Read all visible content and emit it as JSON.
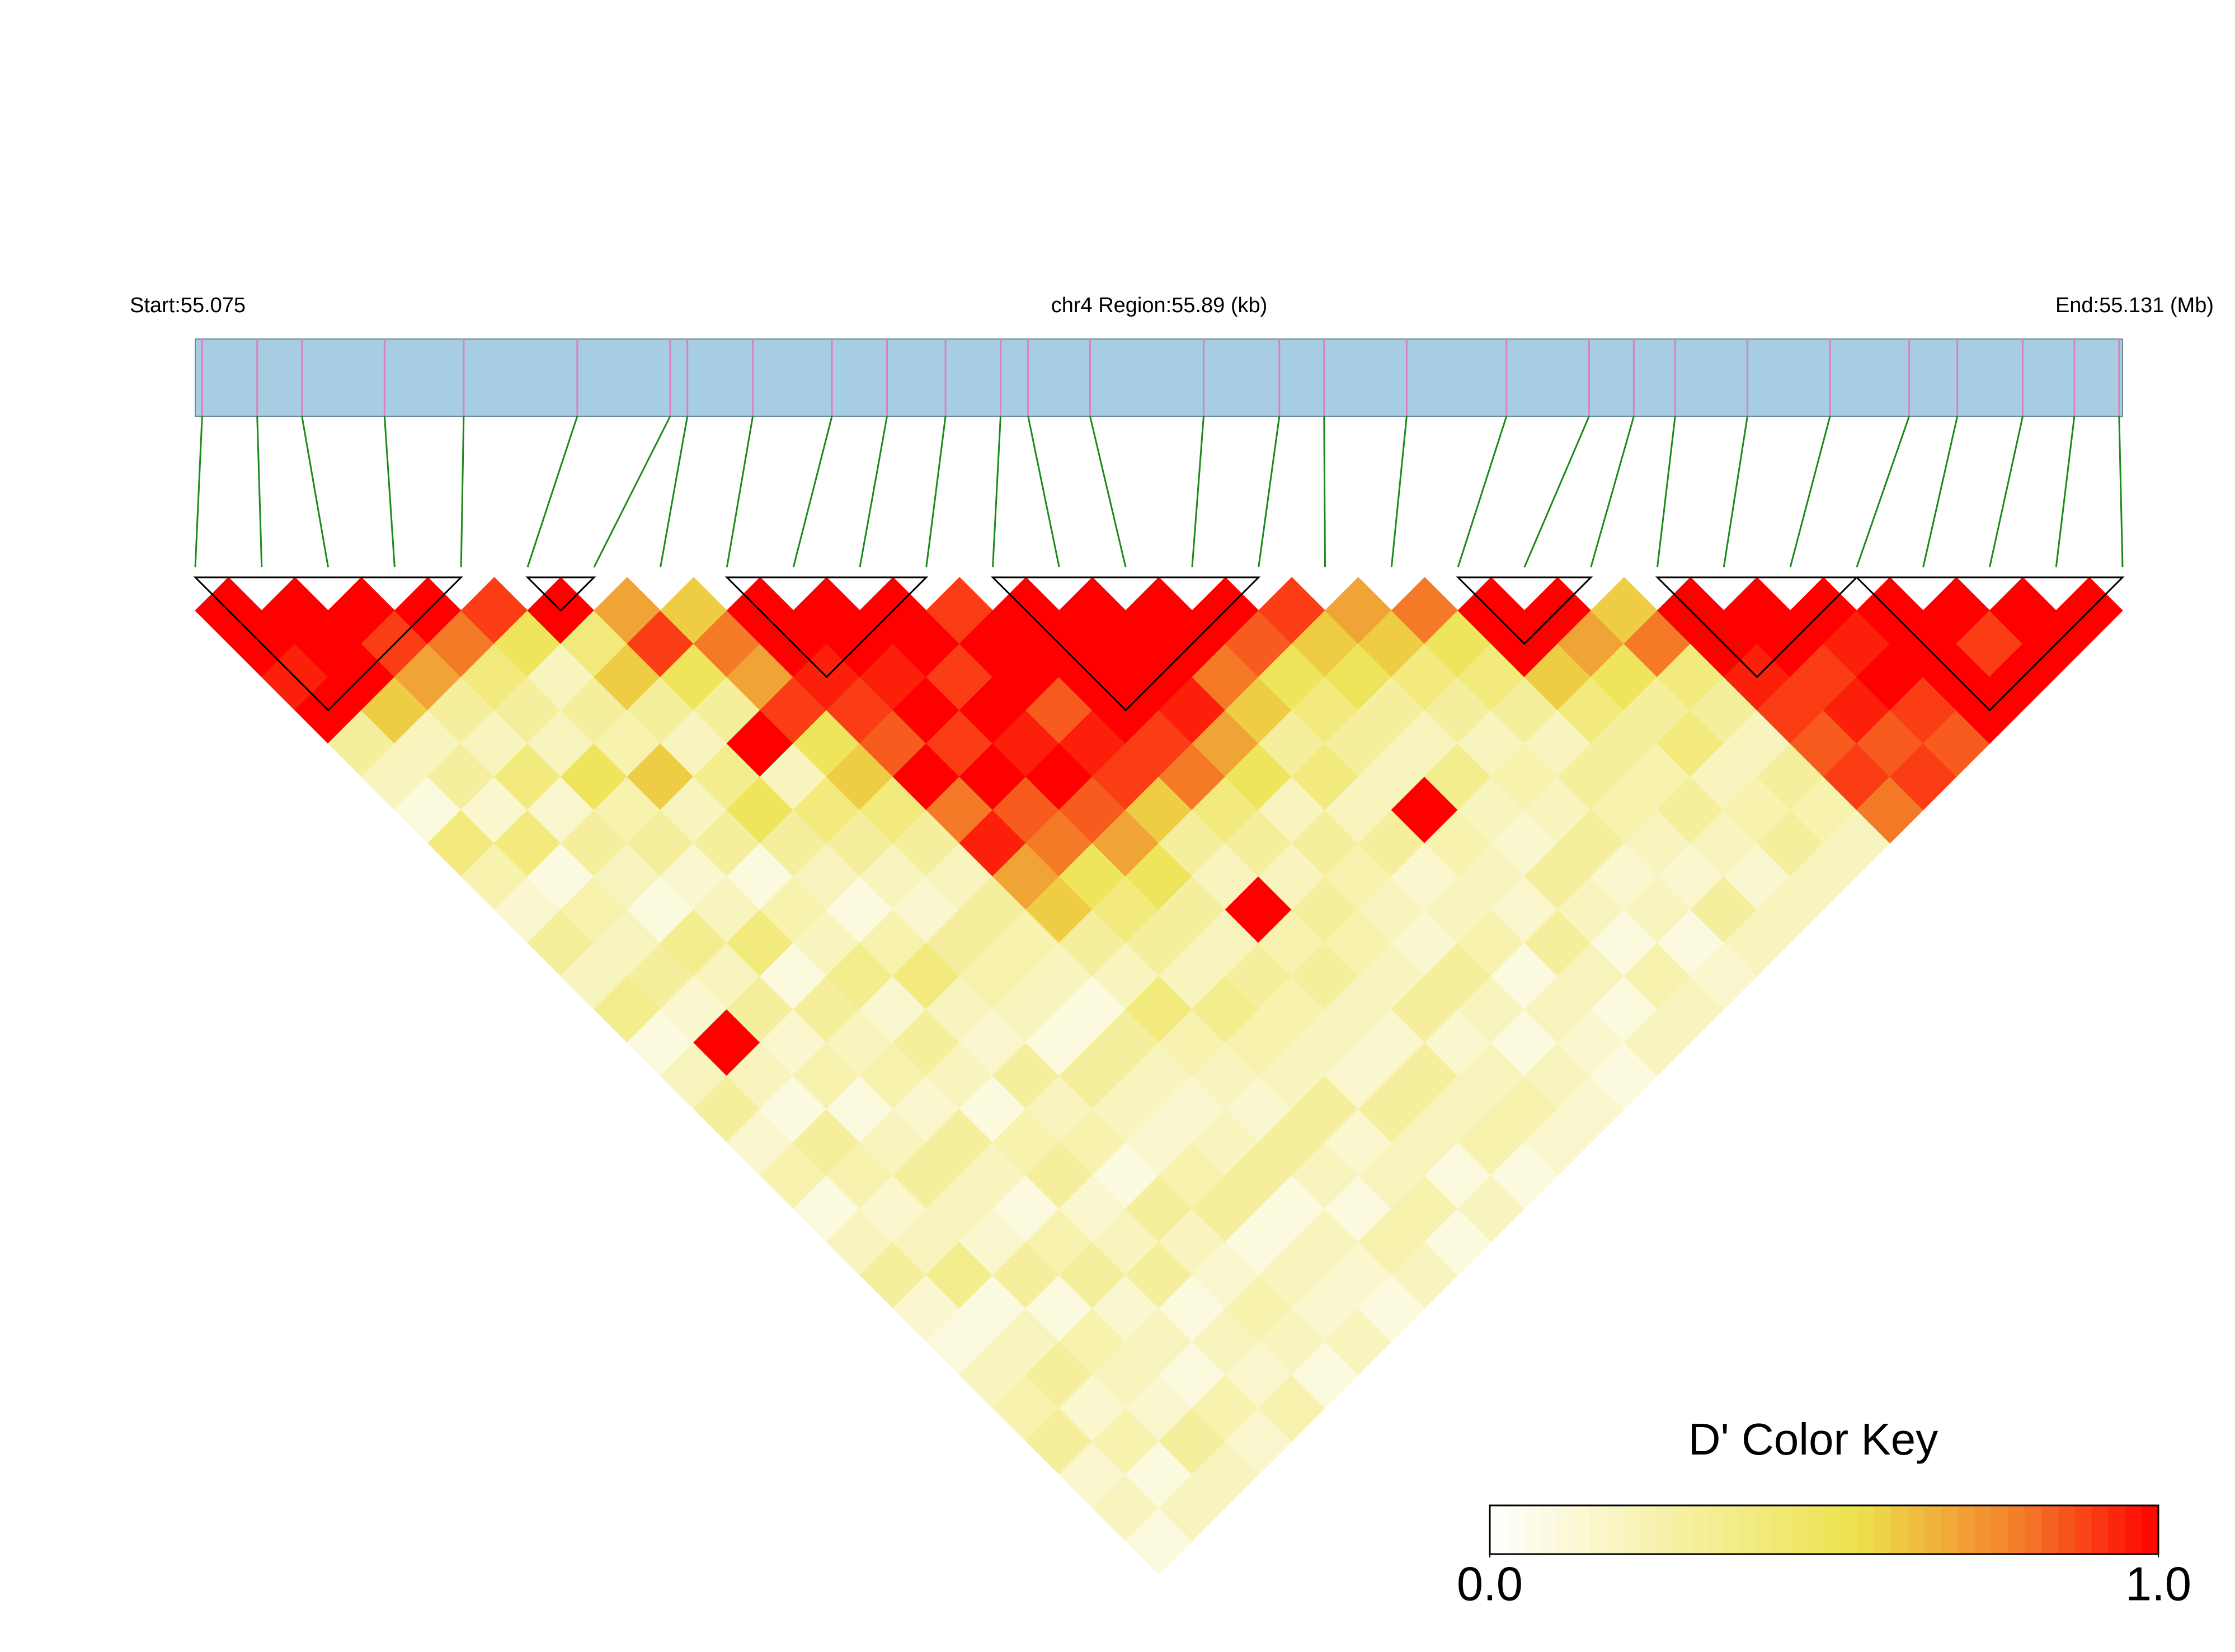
{
  "chart_data": {
    "type": "ld-heatmap",
    "start_label": "Start:55.075",
    "region_label": "chr4 Region:55.89 (kb)",
    "end_label": "End:55.131 (Mb)",
    "key_title": "D' Color Key",
    "xlim": [
      55.075,
      55.131
    ],
    "positions": [
      55.0752,
      55.0768,
      55.0781,
      55.0805,
      55.0828,
      55.0861,
      55.0888,
      55.0893,
      55.0912,
      55.0935,
      55.0951,
      55.0968,
      55.0984,
      55.0992,
      55.101,
      55.1043,
      55.1065,
      55.1078,
      55.1102,
      55.1131,
      55.1155,
      55.1168,
      55.118,
      55.1201,
      55.1225,
      55.1248,
      55.1262,
      55.1281,
      55.1296,
      55.1309
    ],
    "track_color": "#a6cde1",
    "snp_color": "#dd7fbf",
    "link_color": "#1a8a1a",
    "block_color": "#000000",
    "blocks": [
      [
        0,
        4
      ],
      [
        5,
        6
      ],
      [
        8,
        11
      ],
      [
        12,
        16
      ],
      [
        19,
        21
      ],
      [
        22,
        25
      ],
      [
        25,
        29
      ]
    ],
    "values": [
      [
        1,
        1,
        0.95,
        1,
        0.3,
        0.2,
        0.1,
        0.4,
        0.25,
        0.15,
        0.3,
        0.2,
        0.35,
        0.1,
        0.2,
        0.3,
        0.15,
        0.25,
        0.1,
        0.2,
        0.3,
        0.15,
        0.1,
        0.2,
        0.25,
        0.3,
        0.15,
        0.2,
        0.1
      ],
      [
        1,
        1,
        1,
        0.6,
        0.2,
        0.3,
        0.15,
        0.4,
        0.1,
        0.25,
        0.2,
        0.3,
        0.15,
        1,
        0.2,
        0.1,
        0.3,
        0.25,
        0.15,
        0.2,
        0.35,
        0.1,
        0.2,
        0.3,
        0.15,
        0.25,
        0.1,
        0.2
      ],
      [
        1,
        0.9,
        0.7,
        0.3,
        0.2,
        0.4,
        0.15,
        0.3,
        0.2,
        0.1,
        0.35,
        0.2,
        0.3,
        0.15,
        0.25,
        0.1,
        0.2,
        0.3,
        0.2,
        0.15,
        0.3,
        0.1,
        0.25,
        0.2,
        0.15,
        0.3,
        0.2
      ],
      [
        1,
        0.8,
        0.4,
        0.3,
        0.2,
        0.5,
        0.25,
        0.3,
        0.15,
        0.2,
        0.4,
        0.1,
        0.3,
        0.2,
        0.25,
        0.15,
        0.3,
        0.2,
        0.1,
        0.25,
        0.3,
        0.15,
        0.2,
        0.1,
        0.25,
        0.15
      ],
      [
        0.9,
        0.5,
        0.2,
        0.3,
        0.25,
        0.6,
        0.2,
        0.3,
        0.1,
        0.25,
        0.2,
        0.35,
        0.15,
        0.3,
        0.2,
        0.1,
        0.25,
        0.3,
        0.15,
        0.2,
        0.3,
        0.1,
        0.2,
        0.15,
        0.25
      ],
      [
        1,
        0.4,
        0.6,
        0.3,
        0.2,
        0.35,
        0.5,
        0.3,
        0.2,
        0.1,
        0.25,
        0.4,
        0.2,
        0.15,
        0.3,
        0.2,
        0.25,
        0.1,
        0.3,
        0.2,
        0.15,
        0.25,
        0.2,
        0.1
      ],
      [
        0.7,
        0.9,
        0.5,
        0.3,
        1,
        0.2,
        0.4,
        0.3,
        0.2,
        0.15,
        0.3,
        0.25,
        0.2,
        0.1,
        0.3,
        0.2,
        0.15,
        0.25,
        0.3,
        0.1,
        0.2,
        0.15,
        0.2
      ],
      [
        0.6,
        0.8,
        0.7,
        0.9,
        0.5,
        0.6,
        0.4,
        0.3,
        0.2,
        0.3,
        0.25,
        0.2,
        0.1,
        0.3,
        0.2,
        0.15,
        0.2,
        0.3,
        0.1,
        0.2,
        0.15,
        0.1
      ],
      [
        1,
        1,
        0.95,
        0.9,
        0.85,
        1,
        0.8,
        0.95,
        0.7,
        0.6,
        0.3,
        0.2,
        0.4,
        0.25,
        0.2,
        0.15,
        0.3,
        0.2,
        0.1,
        0.25,
        0.2
      ],
      [
        1,
        1,
        0.95,
        1,
        0.9,
        1,
        0.85,
        0.8,
        0.5,
        0.4,
        0.3,
        0.2,
        0.35,
        0.25,
        0.2,
        0.3,
        0.15,
        0.2,
        0.25,
        0.1
      ],
      [
        1,
        1,
        0.9,
        1,
        0.95,
        1,
        0.85,
        0.7,
        0.5,
        0.3,
        0.2,
        0.3,
        0.25,
        0.2,
        0.15,
        0.3,
        0.2,
        0.1,
        0.2
      ],
      [
        0.9,
        1,
        1,
        0.85,
        0.95,
        0.9,
        0.6,
        0.3,
        0.2,
        1,
        0.25,
        0.3,
        0.2,
        0.15,
        0.3,
        0.2,
        0.25,
        0.1
      ],
      [
        1,
        1,
        1,
        1,
        0.9,
        0.8,
        0.4,
        0.3,
        0.2,
        0.3,
        0.25,
        0.2,
        0.3,
        0.15,
        0.2,
        0.25,
        0.15
      ],
      [
        1,
        1,
        1,
        0.95,
        0.7,
        0.5,
        0.2,
        0.3,
        0.25,
        0.2,
        0.15,
        0.3,
        0.2,
        0.1,
        0.2,
        0.15
      ],
      [
        1,
        1,
        0.8,
        0.6,
        0.3,
        0.4,
        0.2,
        0.3,
        0.15,
        0.2,
        0.25,
        0.1,
        0.2,
        0.15,
        0.1
      ],
      [
        1,
        0.85,
        0.5,
        0.4,
        0.3,
        0.2,
        1,
        0.25,
        0.2,
        0.15,
        0.3,
        0.2,
        0.1,
        0.2
      ],
      [
        0.9,
        0.6,
        0.5,
        0.3,
        0.2,
        0.35,
        0.2,
        0.15,
        0.3,
        0.2,
        0.1,
        0.25,
        0.2
      ],
      [
        0.7,
        0.6,
        0.4,
        0.3,
        0.2,
        0.25,
        0.2,
        0.3,
        0.15,
        0.2,
        0.1,
        0.15
      ],
      [
        0.8,
        0.5,
        0.4,
        0.3,
        0.2,
        0.3,
        0.25,
        0.2,
        0.15,
        0.3,
        0.2
      ],
      [
        1,
        1,
        0.6,
        0.4,
        0.3,
        0.25,
        0.3,
        0.2,
        0.15,
        0.2
      ],
      [
        1,
        0.7,
        0.5,
        0.3,
        0.4,
        0.2,
        0.25,
        0.3,
        0.2
      ],
      [
        0.6,
        0.8,
        0.4,
        0.3,
        0.2,
        0.3,
        0.25,
        0.2
      ],
      [
        1,
        1,
        0.95,
        0.9,
        0.85,
        0.9,
        0.8
      ],
      [
        1,
        1,
        0.9,
        0.95,
        0.85,
        0.9
      ],
      [
        1,
        0.95,
        1,
        0.9,
        0.85
      ],
      [
        1,
        1,
        1,
        1
      ],
      [
        1,
        0.9,
        1
      ],
      [
        1,
        1
      ],
      [
        1
      ]
    ],
    "colormap": [
      {
        "value": 0,
        "color": "#ffffff"
      },
      {
        "value": 0.55,
        "color": "#ede24c"
      },
      {
        "value": 0.8,
        "color": "#f47a28"
      },
      {
        "value": 1,
        "color": "#ff0000"
      }
    ],
    "key_ticks": [
      {
        "value": 0,
        "label": "0.0"
      },
      {
        "value": 1,
        "label": "1.0"
      }
    ]
  }
}
